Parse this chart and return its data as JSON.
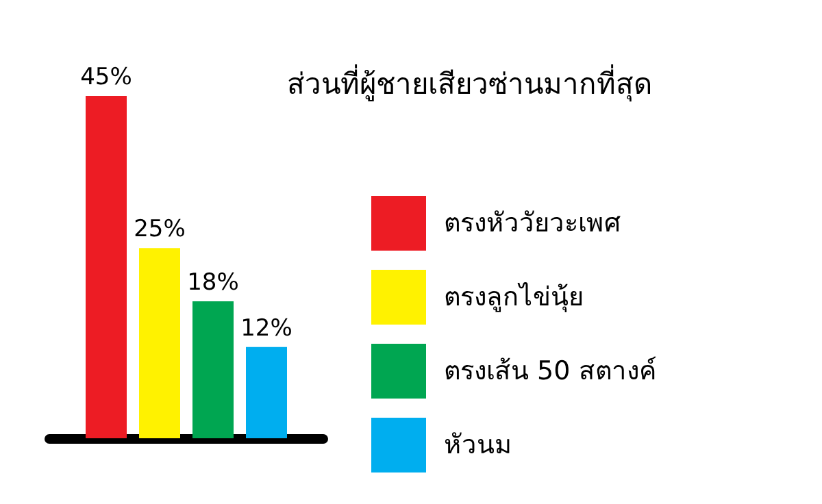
{
  "chart_data": {
    "type": "bar",
    "title": "ส่วนที่ผู้ชายเสียวซ่านมากที่สุด",
    "categories": [
      null
    ],
    "legend": "right",
    "series": [
      {
        "name": "ตรงหัววัยวะเพศ",
        "color": "#ed1c24",
        "values": [
          45
        ],
        "value_labels": [
          "45%"
        ]
      },
      {
        "name": "ตรงลูกไข่นุ้ย",
        "color": "#fff200",
        "values": [
          25
        ],
        "value_labels": [
          "25%"
        ]
      },
      {
        "name": "ตรงเส้น 50 สตางค์",
        "color": "#00a651",
        "values": [
          18
        ],
        "value_labels": [
          "18%"
        ]
      },
      {
        "name": "หัวนม",
        "color": "#00aeef",
        "values": [
          12
        ],
        "value_labels": [
          "12%"
        ]
      }
    ]
  }
}
